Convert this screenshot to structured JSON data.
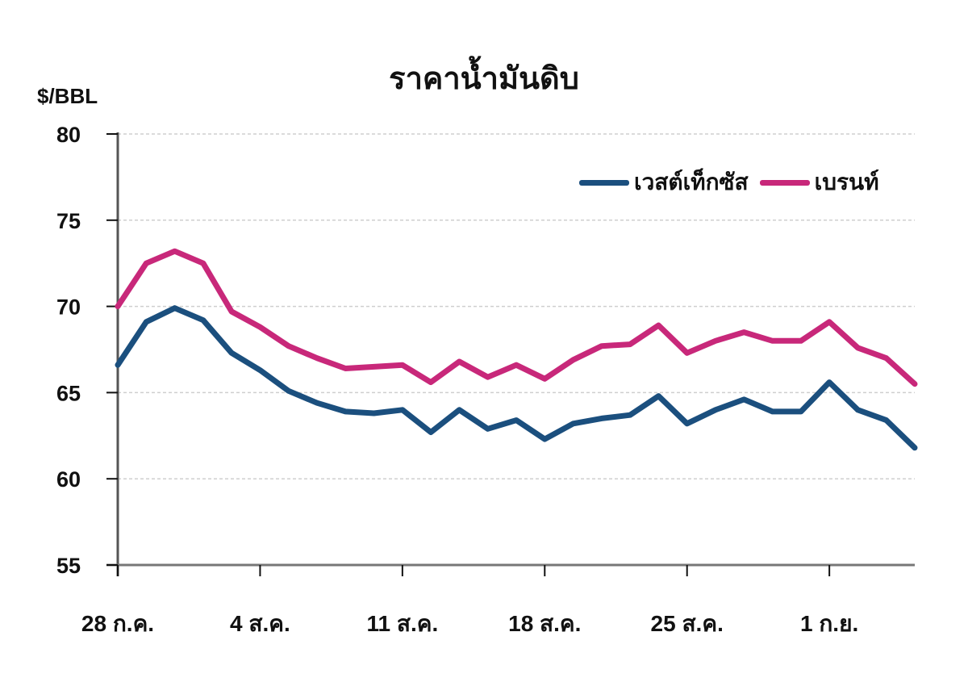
{
  "chart_data": {
    "type": "line",
    "title": "ราคาน้ำมันดิบ",
    "ylabel": "$/BBL",
    "xlabel": "",
    "ylim": [
      55,
      80
    ],
    "yticks": [
      55,
      60,
      65,
      70,
      75,
      80
    ],
    "grid": true,
    "legend_position": "top-right",
    "x_tick_labels": [
      "28 ก.ค.",
      "4 ส.ค.",
      "11 ส.ค.",
      "18 ส.ค.",
      "25 ส.ค.",
      "1 ก.ย."
    ],
    "x_tick_index": [
      0,
      5,
      10,
      15,
      20,
      25
    ],
    "x_count": 29,
    "series": [
      {
        "name": "เวสต์เท็กซัส",
        "color": "#1b4f7e",
        "values": [
          66.6,
          69.1,
          69.9,
          69.2,
          67.3,
          66.3,
          65.1,
          64.4,
          63.9,
          63.8,
          64.0,
          62.7,
          64.0,
          62.9,
          63.4,
          62.3,
          63.2,
          63.5,
          63.7,
          64.8,
          63.2,
          64.0,
          64.6,
          63.9,
          63.9,
          65.6,
          64.0,
          63.4,
          61.8
        ]
      },
      {
        "name": "เบรนท์",
        "color": "#c8287a",
        "values": [
          70.0,
          72.5,
          73.2,
          72.5,
          69.7,
          68.8,
          67.7,
          67.0,
          66.4,
          66.5,
          66.6,
          65.6,
          66.8,
          65.9,
          66.6,
          65.8,
          66.9,
          67.7,
          67.8,
          68.9,
          67.3,
          68.0,
          68.5,
          68.0,
          68.0,
          69.1,
          67.6,
          67.0,
          65.5
        ]
      }
    ]
  },
  "legend": {
    "items": [
      {
        "label": "เวสต์เท็กซัส",
        "color": "#1b4f7e"
      },
      {
        "label": "เบรนท์",
        "color": "#c8287a"
      }
    ]
  }
}
